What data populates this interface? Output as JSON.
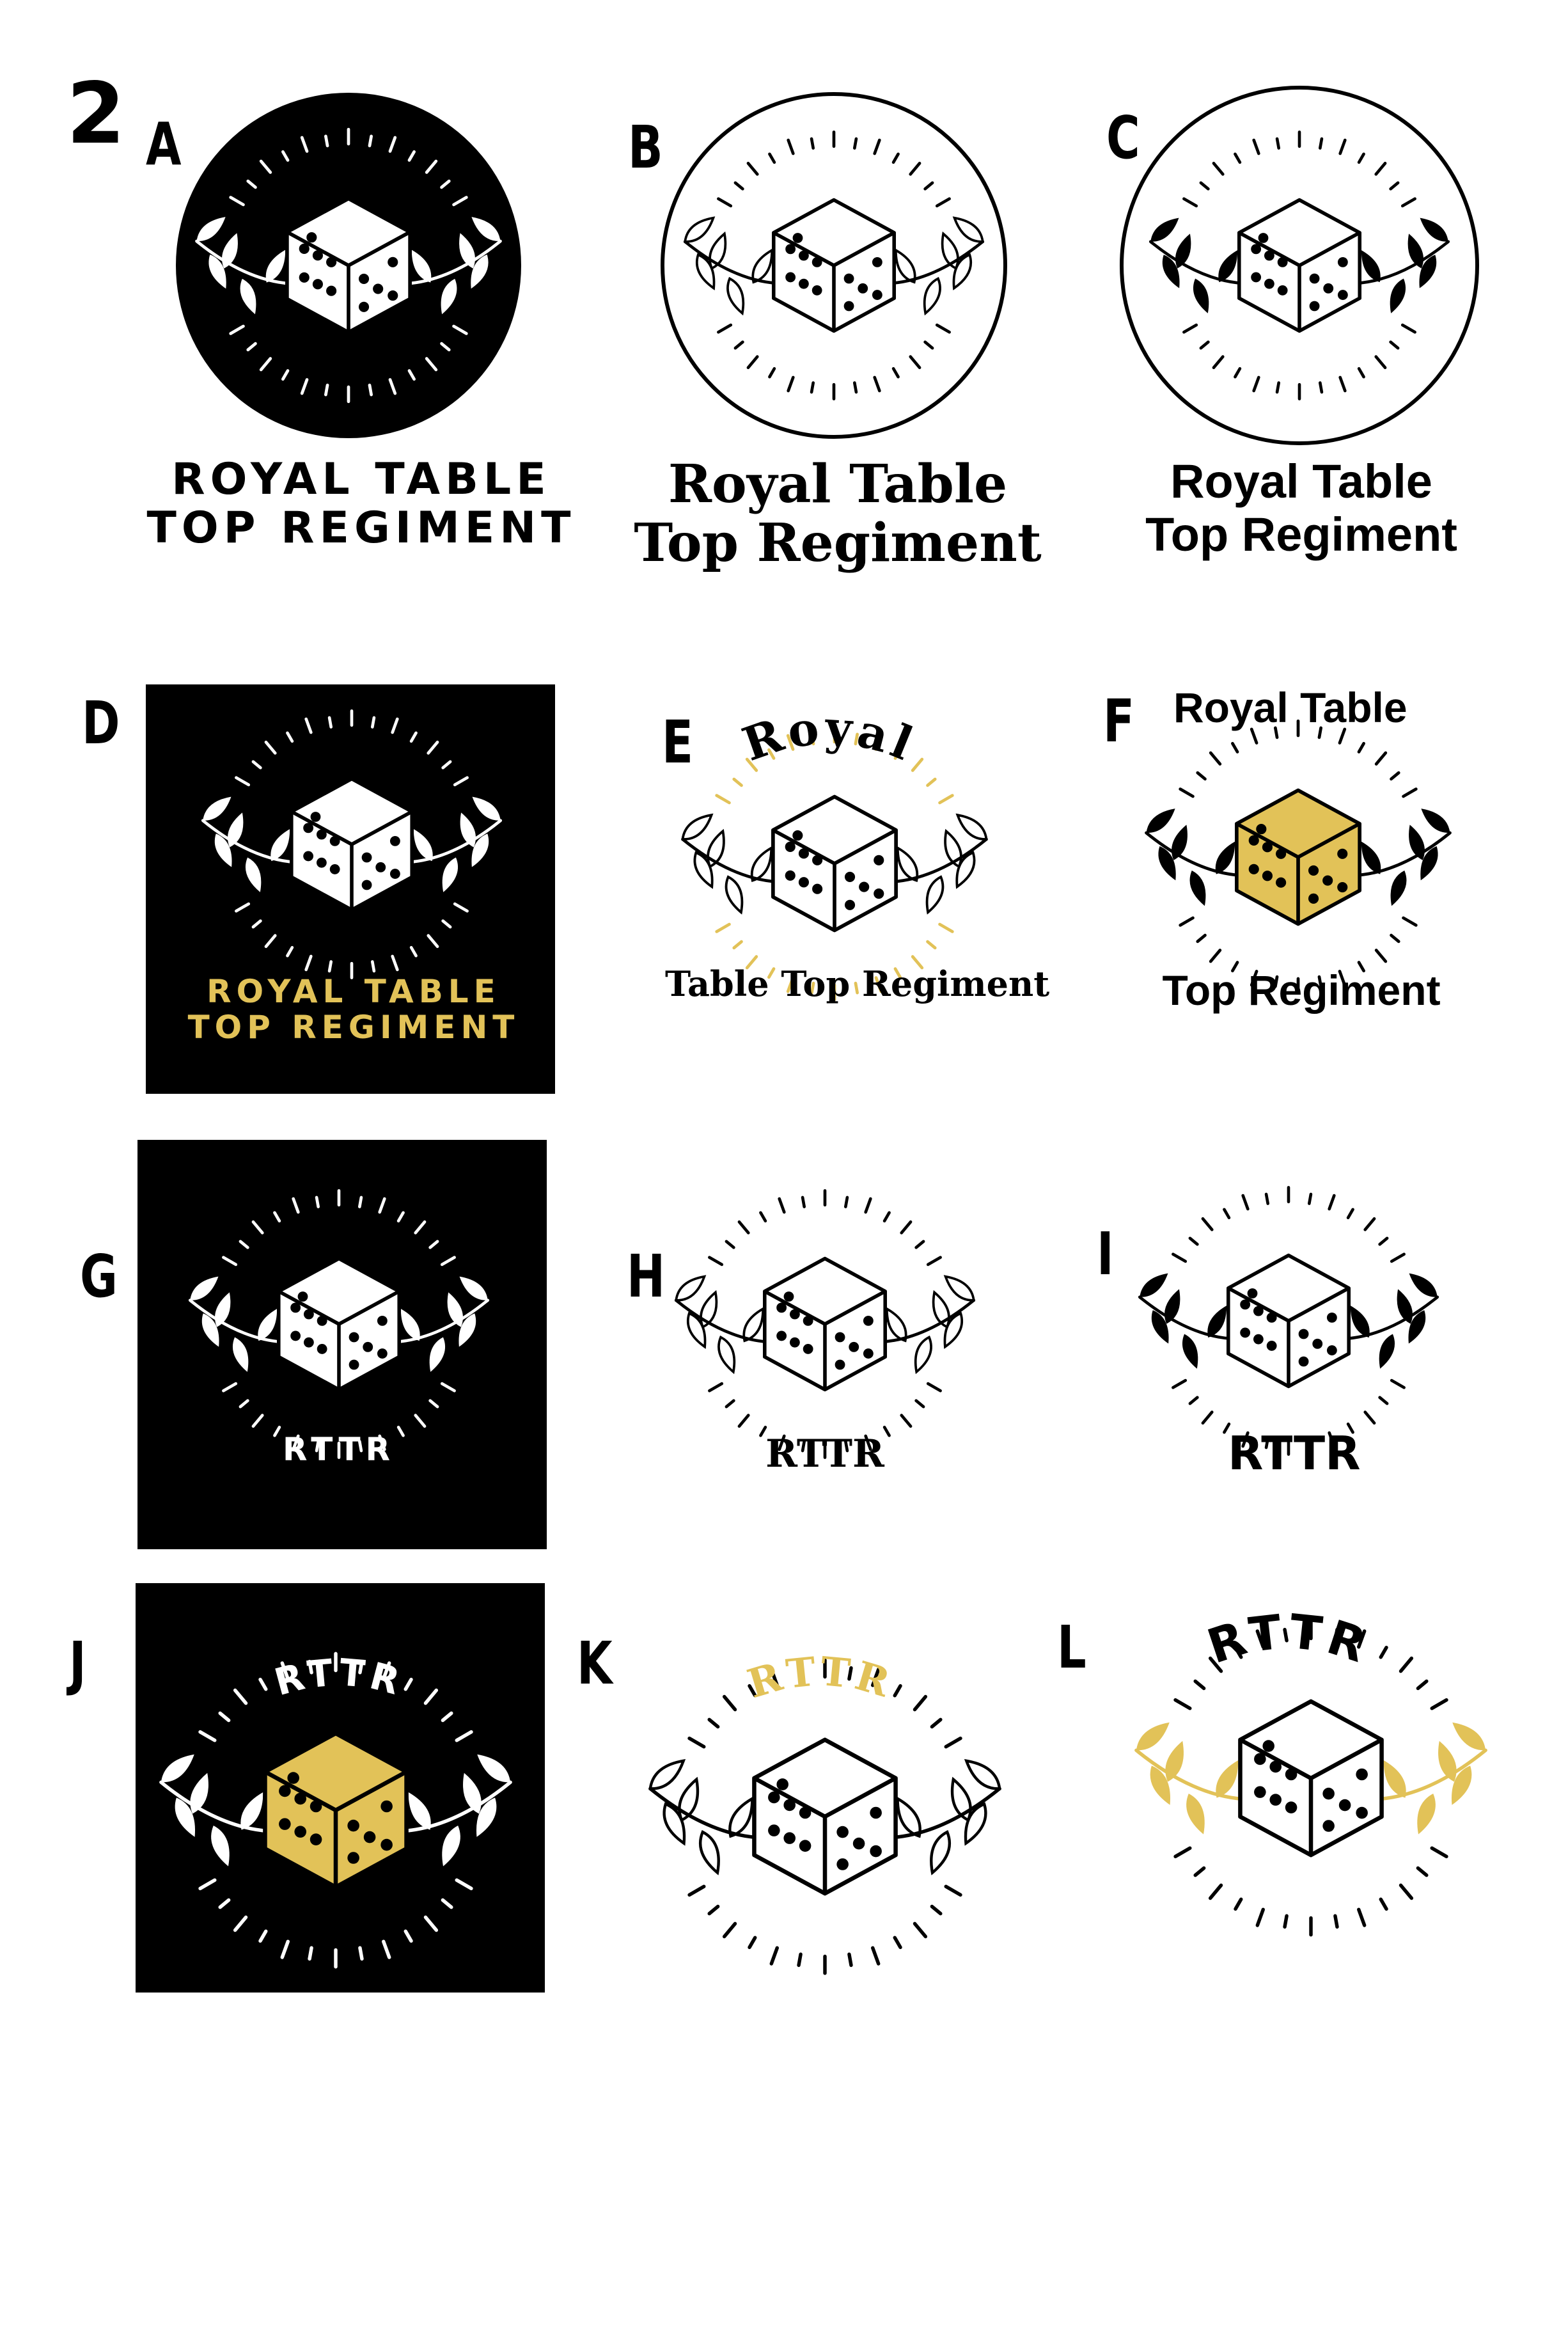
{
  "sheet": {
    "number": "2"
  },
  "colors": {
    "black": "#000000",
    "white": "#ffffff",
    "gold": "#E2C258"
  },
  "concepts": [
    {
      "letter": "A",
      "frame": "filled-circle",
      "leaves": "filled",
      "lines": [
        "ROYAL TABLE",
        "TOP REGIMENT"
      ],
      "text_color": "#000000",
      "font": "wide"
    },
    {
      "letter": "B",
      "frame": "outline-circle",
      "leaves": "outline",
      "lines": [
        "Royal Table",
        "Top Regiment"
      ],
      "text_color": "#000000",
      "font": "serif"
    },
    {
      "letter": "C",
      "frame": "outline-circle",
      "leaves": "filled",
      "lines": [
        "Royal Table",
        "Top Regiment"
      ],
      "text_color": "#000000",
      "font": "sans"
    },
    {
      "letter": "D",
      "frame": "square",
      "leaves": "filled",
      "lines": [
        "ROYAL TABLE",
        "TOP REGIMENT"
      ],
      "text_color": "#E2C258",
      "font": "wide"
    },
    {
      "letter": "E",
      "frame": "none",
      "leaves": "outline",
      "arc_text": "Royal",
      "lines": [
        "Table Top Regiment"
      ],
      "text_color": "#000000",
      "font": "serif"
    },
    {
      "letter": "F",
      "frame": "none",
      "leaves": "filled",
      "top_text": "Royal Table",
      "lines": [
        "Top Regiment"
      ],
      "text_color": "#000000",
      "font": "sans",
      "die_fill": "#E2C258"
    },
    {
      "letter": "G",
      "frame": "square",
      "leaves": "filled",
      "lines": [
        "RTTR"
      ],
      "text_color": "#ffffff",
      "font": "wide"
    },
    {
      "letter": "H",
      "frame": "none",
      "leaves": "outline",
      "lines": [
        "RTTR"
      ],
      "text_color": "#000000",
      "font": "serif"
    },
    {
      "letter": "I",
      "frame": "none",
      "leaves": "filled",
      "lines": [
        "RTTR"
      ],
      "text_color": "#000000",
      "font": "sansb"
    },
    {
      "letter": "J",
      "frame": "square",
      "leaves": "filled",
      "arc_text": "RTTR",
      "lines": [],
      "text_color": "#ffffff",
      "font": "wide",
      "die_fill": "#E2C258"
    },
    {
      "letter": "K",
      "frame": "none",
      "leaves": "outline",
      "arc_text": "RTTR",
      "lines": [],
      "text_color": "#E2C258",
      "font": "serif"
    },
    {
      "letter": "L",
      "frame": "none",
      "leaves": "filled",
      "arc_text": "RTTR",
      "lines": [],
      "text_color": "#000000",
      "font": "sansb",
      "leaf_color": "#E2C258"
    }
  ]
}
